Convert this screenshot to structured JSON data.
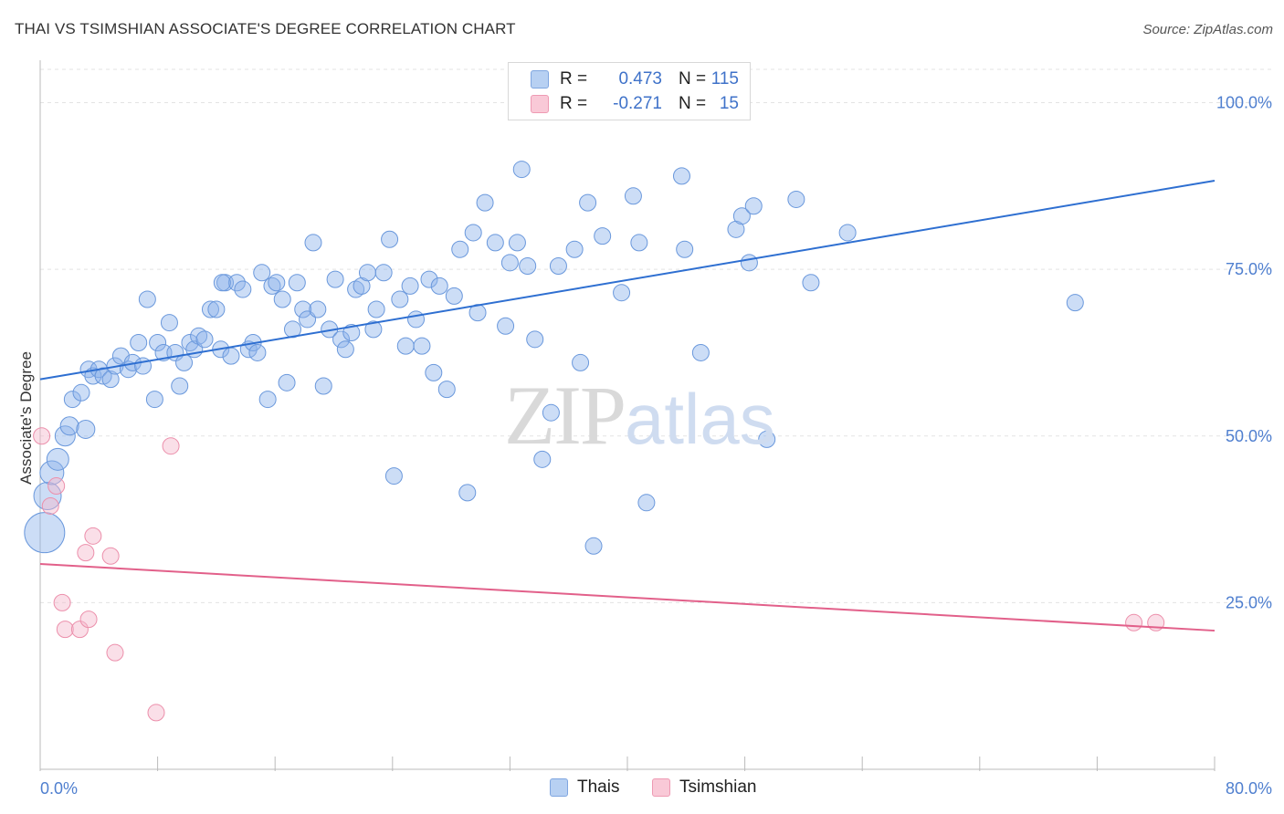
{
  "title": "THAI VS TSIMSHIAN ASSOCIATE'S DEGREE CORRELATION CHART",
  "source": "Source: ZipAtlas.com",
  "watermark": {
    "zip": "ZIP",
    "atlas": "atlas"
  },
  "legend": {
    "rows": [
      {
        "r_label": "R = ",
        "r_value": "0.473",
        "n_label": "N = ",
        "n_value": "115",
        "color": "#b7d0f2",
        "border": "#7fa6e0"
      },
      {
        "r_label": "R = ",
        "r_value": "-0.271",
        "n_label": "N = ",
        "n_value": "15",
        "color": "#f9c9d7",
        "border": "#ee9ab3"
      }
    ]
  },
  "bottom_legend": [
    {
      "label": "Thais",
      "color": "#b7d0f2",
      "border": "#7fa6e0"
    },
    {
      "label": "Tsimshian",
      "color": "#f9c9d7",
      "border": "#ee9ab3"
    }
  ],
  "chart_data": {
    "type": "scatter",
    "title": "THAI VS TSIMSHIAN ASSOCIATE'S DEGREE CORRELATION CHART",
    "xlabel": "",
    "ylabel": "Associate's Degree",
    "xlim": [
      0,
      80
    ],
    "ylim": [
      0,
      105
    ],
    "x_tick_labels": [
      "0.0%",
      "80.0%"
    ],
    "y_ticks": [
      25,
      50,
      75,
      100
    ],
    "y_tick_labels": [
      "25.0%",
      "50.0%",
      "75.0%",
      "100.0%"
    ],
    "grid": "horizontal dashed",
    "legend_position": "top-center",
    "series": [
      {
        "name": "Thais",
        "color": "#8fb4ea",
        "stroke": "#6a98dc",
        "trend": {
          "x": [
            0,
            80
          ],
          "y": [
            58.5,
            88.3
          ],
          "color": "#2e6fd1"
        },
        "points": [
          [
            0.3,
            35.5,
            22
          ],
          [
            0.5,
            41,
            15
          ],
          [
            0.8,
            44.5,
            13
          ],
          [
            1.2,
            46.5,
            12
          ],
          [
            1.7,
            50,
            11
          ],
          [
            2,
            51.5,
            10
          ],
          [
            2.2,
            55.5,
            9
          ],
          [
            2.8,
            56.5,
            9
          ],
          [
            3.1,
            51,
            10
          ],
          [
            3.3,
            60,
            9
          ],
          [
            3.6,
            59,
            9
          ],
          [
            4,
            60,
            9
          ],
          [
            4.3,
            59,
            9
          ],
          [
            4.8,
            58.5,
            9
          ],
          [
            5.1,
            60.5,
            9
          ],
          [
            5.5,
            62,
            9
          ],
          [
            6,
            60,
            9
          ],
          [
            6.3,
            61,
            9
          ],
          [
            6.7,
            64,
            9
          ],
          [
            7,
            60.5,
            9
          ],
          [
            7.3,
            70.5,
            9
          ],
          [
            7.8,
            55.5,
            9
          ],
          [
            8,
            64,
            9
          ],
          [
            8.4,
            62.5,
            9
          ],
          [
            8.8,
            67,
            9
          ],
          [
            9.2,
            62.5,
            9
          ],
          [
            9.5,
            57.5,
            9
          ],
          [
            9.8,
            61,
            9
          ],
          [
            10.2,
            64,
            9
          ],
          [
            10.5,
            63,
            9
          ],
          [
            10.8,
            65,
            9
          ],
          [
            11.2,
            64.5,
            9
          ],
          [
            11.6,
            69,
            9
          ],
          [
            12,
            69,
            9
          ],
          [
            12.3,
            63,
            9
          ],
          [
            12.6,
            73,
            9
          ],
          [
            13,
            62,
            9
          ],
          [
            13.4,
            73,
            9
          ],
          [
            13.8,
            72,
            9
          ],
          [
            14.2,
            63,
            9
          ],
          [
            14.5,
            64,
            9
          ],
          [
            14.8,
            62.5,
            9
          ],
          [
            15.1,
            74.5,
            9
          ],
          [
            15.5,
            55.5,
            9
          ],
          [
            15.8,
            72.5,
            9
          ],
          [
            16.1,
            73,
            9
          ],
          [
            16.5,
            70.5,
            9
          ],
          [
            16.8,
            58,
            9
          ],
          [
            17.2,
            66,
            9
          ],
          [
            17.5,
            73,
            9
          ],
          [
            17.9,
            69,
            9
          ],
          [
            18.2,
            67.5,
            9
          ],
          [
            18.6,
            79,
            9
          ],
          [
            18.9,
            69,
            9
          ],
          [
            19.3,
            57.5,
            9
          ],
          [
            19.7,
            66,
            9
          ],
          [
            20.1,
            73.5,
            9
          ],
          [
            20.5,
            64.5,
            9
          ],
          [
            20.8,
            63,
            9
          ],
          [
            21.2,
            65.5,
            9
          ],
          [
            21.5,
            72,
            9
          ],
          [
            21.9,
            72.5,
            9
          ],
          [
            22.3,
            74.5,
            9
          ],
          [
            22.7,
            66,
            9
          ],
          [
            22.9,
            69,
            9
          ],
          [
            23.4,
            74.5,
            9
          ],
          [
            23.8,
            79.5,
            9
          ],
          [
            24.1,
            44,
            9
          ],
          [
            24.5,
            70.5,
            9
          ],
          [
            24.9,
            63.5,
            9
          ],
          [
            25.2,
            72.5,
            9
          ],
          [
            25.6,
            67.5,
            9
          ],
          [
            26,
            63.5,
            9
          ],
          [
            26.5,
            73.5,
            9
          ],
          [
            26.8,
            59.5,
            9
          ],
          [
            27.2,
            72.5,
            9
          ],
          [
            27.7,
            57,
            9
          ],
          [
            28.2,
            71,
            9
          ],
          [
            28.6,
            78,
            9
          ],
          [
            29.1,
            41.5,
            9
          ],
          [
            29.5,
            80.5,
            9
          ],
          [
            29.8,
            68.5,
            9
          ],
          [
            30.3,
            85,
            9
          ],
          [
            31,
            79,
            9
          ],
          [
            31.7,
            66.5,
            9
          ],
          [
            32,
            76,
            9
          ],
          [
            32.5,
            79,
            9
          ],
          [
            32.8,
            90,
            9
          ],
          [
            33.2,
            75.5,
            9
          ],
          [
            33.7,
            64.5,
            9
          ],
          [
            34.2,
            46.5,
            9
          ],
          [
            34.8,
            53.5,
            9
          ],
          [
            35.3,
            75.5,
            9
          ],
          [
            36.4,
            78,
            9
          ],
          [
            36.8,
            61,
            9
          ],
          [
            37.3,
            85,
            9
          ],
          [
            37.7,
            33.5,
            9
          ],
          [
            38.3,
            80,
            9
          ],
          [
            39.6,
            71.5,
            9
          ],
          [
            40.4,
            86,
            9
          ],
          [
            40.8,
            79,
            9
          ],
          [
            41.3,
            40,
            9
          ],
          [
            43.7,
            89,
            9
          ],
          [
            43.9,
            78,
            9
          ],
          [
            45,
            62.5,
            9
          ],
          [
            47.4,
            81,
            9
          ],
          [
            47.8,
            83,
            9
          ],
          [
            48.3,
            76,
            9
          ],
          [
            48.6,
            84.5,
            9
          ],
          [
            49.5,
            49.5,
            9
          ],
          [
            51.5,
            85.5,
            9
          ],
          [
            52.5,
            73,
            9
          ],
          [
            55,
            80.5,
            9
          ],
          [
            70.5,
            70,
            9
          ],
          [
            12.4,
            73,
            9
          ]
        ]
      },
      {
        "name": "Tsimshian",
        "color": "#f5b8cb",
        "stroke": "#ec8fab",
        "trend": {
          "x": [
            0,
            80
          ],
          "y": [
            30.8,
            20.8
          ],
          "color": "#e2608a"
        },
        "points": [
          [
            0.1,
            50,
            9
          ],
          [
            0.7,
            39.5,
            9
          ],
          [
            1.1,
            42.5,
            9
          ],
          [
            1.5,
            25,
            9
          ],
          [
            1.7,
            21,
            9
          ],
          [
            2.7,
            21,
            9
          ],
          [
            3.1,
            32.5,
            9
          ],
          [
            3.3,
            22.5,
            9
          ],
          [
            3.6,
            35,
            9
          ],
          [
            4.8,
            32,
            9
          ],
          [
            5.1,
            17.5,
            9
          ],
          [
            7.9,
            8.5,
            9
          ],
          [
            8.9,
            48.5,
            9
          ],
          [
            74.5,
            22,
            9
          ],
          [
            76,
            22,
            9
          ]
        ]
      }
    ]
  }
}
